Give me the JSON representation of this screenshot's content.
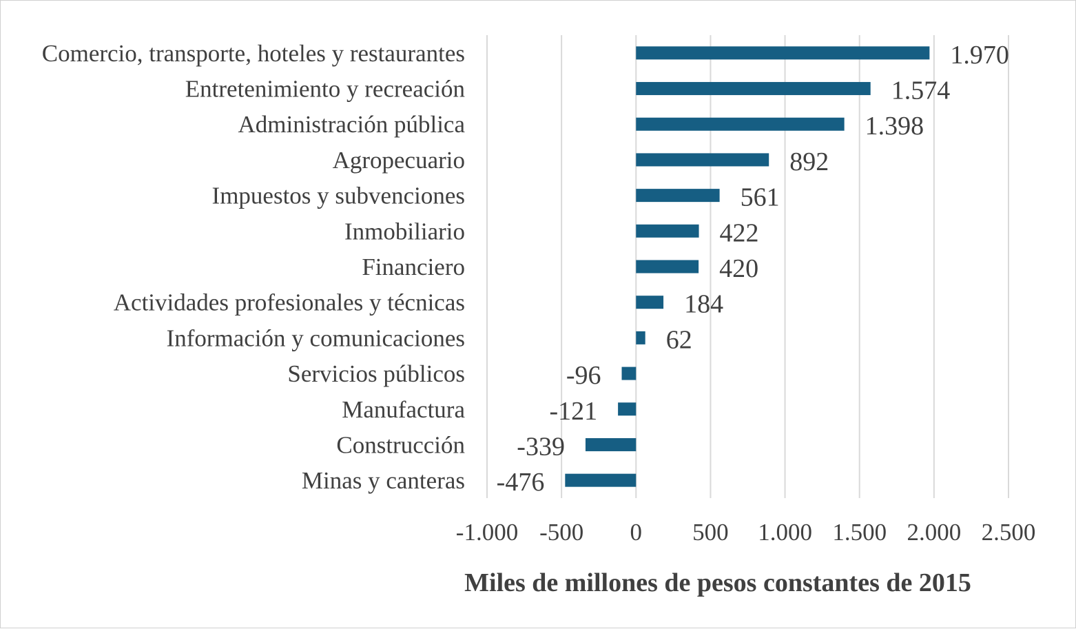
{
  "chart_data": {
    "type": "bar",
    "orientation": "horizontal",
    "categories": [
      "Comercio, transporte, hoteles y restaurantes",
      "Entretenimiento y recreación",
      "Administración pública",
      "Agropecuario",
      "Impuestos y subvenciones",
      "Inmobiliario",
      "Financiero",
      "Actividades profesionales y técnicas",
      "Información y comunicaciones",
      "Servicios públicos",
      "Manufactura",
      "Construcción",
      "Minas y canteras"
    ],
    "values": [
      1970,
      1574,
      1398,
      892,
      561,
      422,
      420,
      184,
      62,
      -96,
      -121,
      -339,
      -476
    ],
    "value_labels": [
      "1.970",
      "1.574",
      "1.398",
      "892",
      "561",
      "422",
      "420",
      "184",
      "62",
      "-96",
      "-121",
      "-339",
      "-476"
    ],
    "xlabel": "Miles de millones de pesos constantes de 2015",
    "xlim": [
      -1000,
      2500
    ],
    "xticks": [
      -1000,
      -500,
      0,
      500,
      1000,
      1500,
      2000,
      2500
    ],
    "xtick_labels": [
      "-1.000",
      "-500",
      "0",
      "500",
      "1.000",
      "1.500",
      "2.000",
      "2.500"
    ],
    "grid": true,
    "bar_color": "#165e83"
  }
}
